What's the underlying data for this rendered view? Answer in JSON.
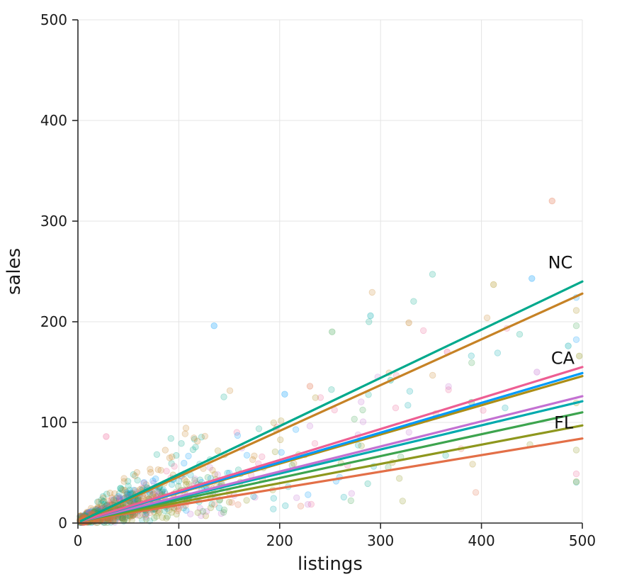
{
  "chart_data": {
    "type": "scatter",
    "title": "",
    "xlabel": "listings",
    "ylabel": "sales",
    "xlim": [
      0,
      500
    ],
    "ylim": [
      0,
      500
    ],
    "xticks": [
      0,
      100,
      200,
      300,
      400,
      500
    ],
    "yticks": [
      0,
      100,
      200,
      300,
      400,
      500
    ],
    "grid": true,
    "legend": false,
    "background": "#ffffff",
    "grid_color": "#e4e4e4",
    "axis_color": "#2a2a2a",
    "tick_label_color": "#1a1a1a",
    "annotation_color": "#111111",
    "series": [
      {
        "id": "series-1",
        "annotation": "NC",
        "color": "#00A98C",
        "trend": {
          "x0": 3,
          "y0": 2,
          "x1": 500,
          "y1": 240
        }
      },
      {
        "id": "series-2",
        "annotation": "",
        "color": "#C68225",
        "trend": {
          "x0": 3,
          "y0": 2,
          "x1": 500,
          "y1": 228
        }
      },
      {
        "id": "series-3",
        "annotation": "CA",
        "color": "#ED5E93",
        "trend": {
          "x0": 3,
          "y0": 2,
          "x1": 500,
          "y1": 155
        }
      },
      {
        "id": "series-4",
        "annotation": "",
        "color": "#009AFA",
        "trend": {
          "x0": 3,
          "y0": 2,
          "x1": 500,
          "y1": 149
        }
      },
      {
        "id": "series-5",
        "annotation": "",
        "color": "#AC8E17",
        "trend": {
          "x0": 3,
          "y0": 2,
          "x1": 500,
          "y1": 146
        }
      },
      {
        "id": "series-6",
        "annotation": "",
        "color": "#C371D2",
        "trend": {
          "x0": 3,
          "y0": 2,
          "x1": 500,
          "y1": 126
        }
      },
      {
        "id": "series-7",
        "annotation": "",
        "color": "#00AAAE",
        "trend": {
          "x0": 3,
          "y0": 2,
          "x1": 500,
          "y1": 121
        }
      },
      {
        "id": "series-8",
        "annotation": "",
        "color": "#3DA44E",
        "trend": {
          "x0": 3,
          "y0": 2,
          "x1": 500,
          "y1": 110
        }
      },
      {
        "id": "series-9",
        "annotation": "FL",
        "color": "#8E971D",
        "trend": {
          "x0": 3,
          "y0": 2,
          "x1": 500,
          "y1": 97
        }
      },
      {
        "id": "series-10",
        "annotation": "",
        "color": "#E36F47",
        "trend": {
          "x0": 3,
          "y0": 2,
          "x1": 500,
          "y1": 84
        }
      }
    ],
    "annotations": [
      {
        "text": "NC",
        "x": 466,
        "y": 253,
        "series": "series-1"
      },
      {
        "text": "CA",
        "x": 469,
        "y": 158,
        "series": "series-3"
      },
      {
        "text": "FL",
        "x": 472,
        "y": 94,
        "series": "series-9"
      }
    ],
    "scatter_cloud": {
      "note": "approx. 1000+ low-alpha points densely clustered near the origin, fanning out toward x=500; procedurally approximated from seeded parameters",
      "seed": 20240601,
      "points_per_series": 108,
      "marker_radius": 4.3,
      "alpha": 0.2,
      "x_exp_means": [
        40,
        150
      ],
      "x_mix_ratio": 0.8,
      "outliers": [
        {
          "x": 470,
          "y": 320,
          "series": 9
        },
        {
          "x": 450,
          "y": 243,
          "series": 3
        },
        {
          "x": 412,
          "y": 237,
          "series": 4
        },
        {
          "x": 290,
          "y": 206,
          "series": 6
        },
        {
          "x": 328,
          "y": 199,
          "series": 1
        },
        {
          "x": 135,
          "y": 196,
          "series": 3
        },
        {
          "x": 252,
          "y": 190,
          "series": 7
        },
        {
          "x": 497,
          "y": 166,
          "series": 8
        },
        {
          "x": 486,
          "y": 176,
          "series": 6
        },
        {
          "x": 366,
          "y": 170,
          "series": 2
        },
        {
          "x": 455,
          "y": 150,
          "series": 5
        },
        {
          "x": 28,
          "y": 86,
          "series": 2
        },
        {
          "x": 230,
          "y": 136,
          "series": 9
        },
        {
          "x": 205,
          "y": 128,
          "series": 3
        },
        {
          "x": 310,
          "y": 142,
          "series": 0
        },
        {
          "x": 390,
          "y": 120,
          "series": 7
        }
      ]
    }
  }
}
